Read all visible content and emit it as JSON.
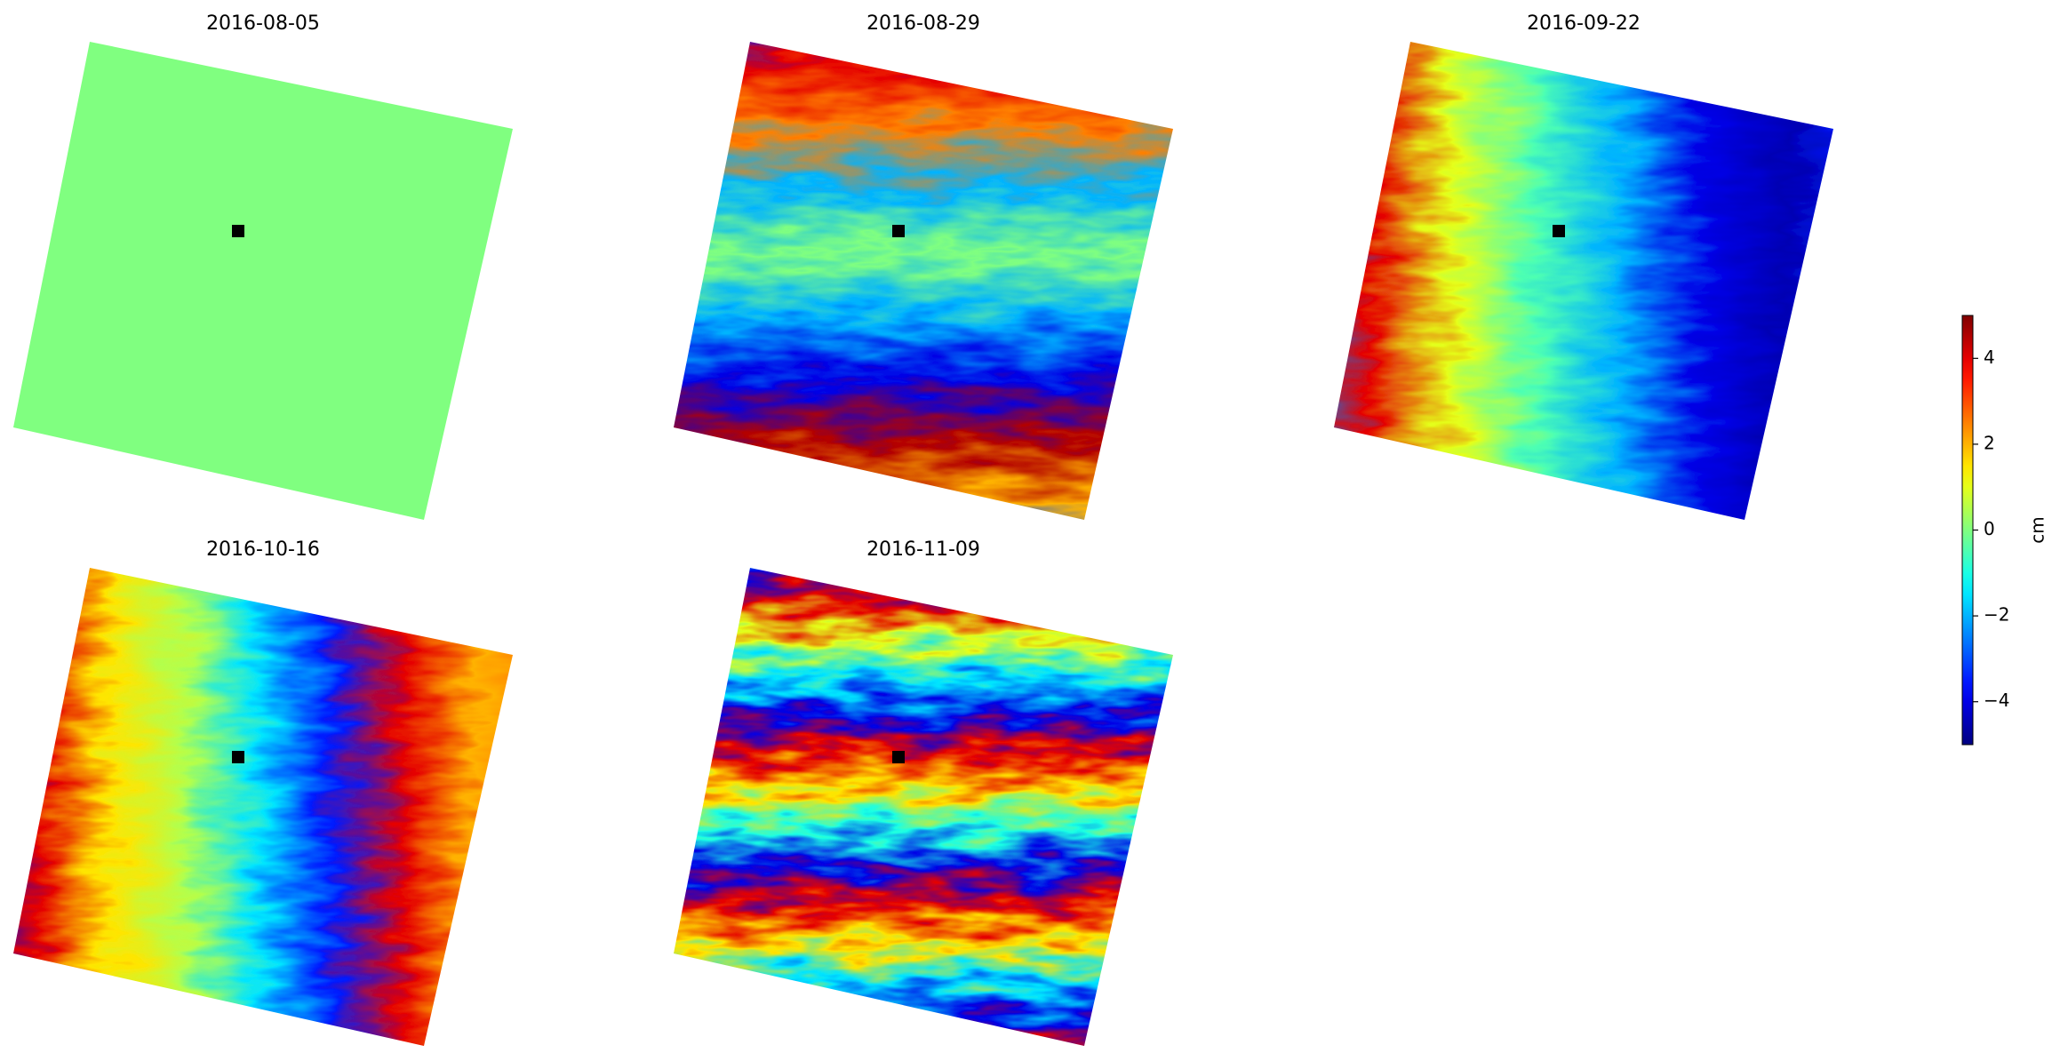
{
  "chart_data": {
    "type": "image-grid",
    "panels": [
      {
        "title": "2016-08-05"
      },
      {
        "title": "2016-08-29"
      },
      {
        "title": "2016-09-22"
      },
      {
        "title": "2016-10-16"
      },
      {
        "title": "2016-11-09"
      }
    ],
    "colorbar": {
      "label": "cm",
      "colormap": "jet",
      "lim": [
        -5,
        5
      ],
      "ticks": [
        {
          "value": -4,
          "label": "−4"
        },
        {
          "value": -2,
          "label": "−2"
        },
        0,
        2,
        4
      ]
    }
  }
}
